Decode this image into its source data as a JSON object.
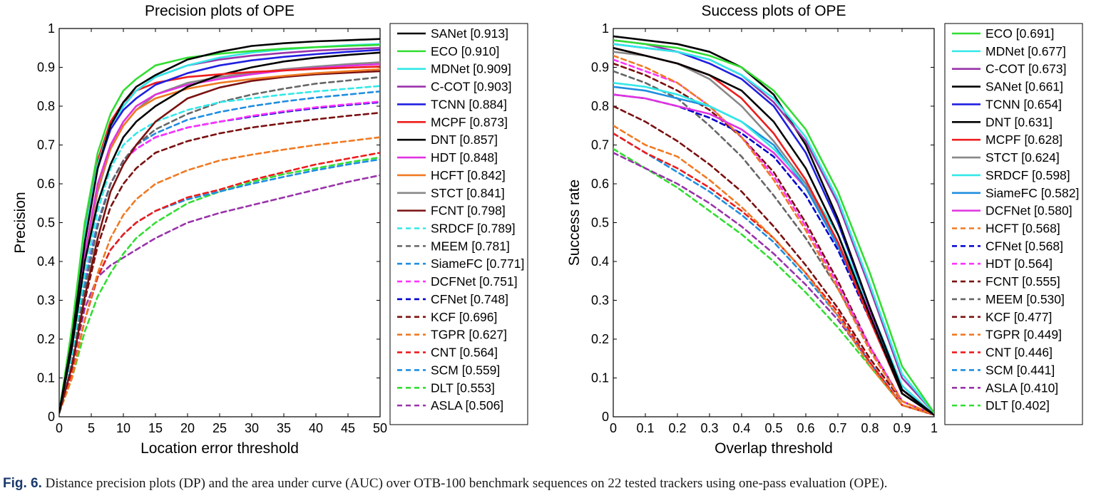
{
  "caption": {
    "label": "Fig. 6.",
    "text": "Distance precision plots (DP) and the area under curve (AUC) over OTB-100 benchmark sequences on 22 tested trackers using one-pass evaluation (OPE)."
  },
  "chart_data": [
    {
      "type": "line",
      "title": "Precision plots of OPE",
      "xlabel": "Location error threshold",
      "ylabel": "Precision",
      "xlim": [
        0,
        50
      ],
      "ylim": [
        0,
        1
      ],
      "xticks": [
        "0",
        "5",
        "10",
        "15",
        "20",
        "25",
        "30",
        "35",
        "40",
        "45",
        "50"
      ],
      "yticks": [
        "0",
        "0.1",
        "0.2",
        "0.3",
        "0.4",
        "0.5",
        "0.6",
        "0.7",
        "0.8",
        "0.9",
        "1"
      ],
      "legend": "right",
      "x": [
        0,
        2,
        4,
        6,
        8,
        10,
        12,
        15,
        20,
        25,
        30,
        35,
        40,
        45,
        50
      ],
      "series": [
        {
          "name": "SANet [0.913]",
          "color": "#000000",
          "dash": "solid",
          "values": [
            0.01,
            0.2,
            0.45,
            0.64,
            0.75,
            0.81,
            0.85,
            0.88,
            0.92,
            0.94,
            0.955,
            0.962,
            0.967,
            0.97,
            0.973
          ]
        },
        {
          "name": "ECO [0.910]",
          "color": "#33dd33",
          "dash": "solid",
          "values": [
            0.01,
            0.23,
            0.5,
            0.68,
            0.78,
            0.84,
            0.87,
            0.905,
            0.925,
            0.935,
            0.942,
            0.948,
            0.952,
            0.955,
            0.958
          ]
        },
        {
          "name": "MDNet [0.909]",
          "color": "#33e8e8",
          "dash": "solid",
          "values": [
            0.01,
            0.21,
            0.47,
            0.65,
            0.75,
            0.8,
            0.84,
            0.875,
            0.905,
            0.925,
            0.938,
            0.946,
            0.952,
            0.957,
            0.96
          ]
        },
        {
          "name": "C-COT [0.903]",
          "color": "#9933aa",
          "dash": "solid",
          "values": [
            0.01,
            0.22,
            0.48,
            0.65,
            0.75,
            0.8,
            0.84,
            0.875,
            0.905,
            0.92,
            0.93,
            0.937,
            0.943,
            0.947,
            0.95
          ]
        },
        {
          "name": "TCNN [0.884]",
          "color": "#1f1fe0",
          "dash": "solid",
          "values": [
            0.01,
            0.22,
            0.48,
            0.64,
            0.74,
            0.79,
            0.82,
            0.855,
            0.885,
            0.905,
            0.918,
            0.927,
            0.934,
            0.94,
            0.945
          ]
        },
        {
          "name": "MCPF [0.873]",
          "color": "#ee1c1c",
          "dash": "solid",
          "values": [
            0.01,
            0.22,
            0.5,
            0.66,
            0.76,
            0.81,
            0.84,
            0.86,
            0.875,
            0.882,
            0.888,
            0.892,
            0.896,
            0.899,
            0.902
          ]
        },
        {
          "name": "DNT [0.857]",
          "color": "#000000",
          "dash": "solid",
          "values": [
            0.01,
            0.18,
            0.4,
            0.55,
            0.65,
            0.72,
            0.76,
            0.8,
            0.85,
            0.88,
            0.9,
            0.915,
            0.925,
            0.932,
            0.938
          ]
        },
        {
          "name": "HDT [0.848]",
          "color": "#e033e0",
          "dash": "solid",
          "values": [
            0.01,
            0.18,
            0.42,
            0.6,
            0.7,
            0.76,
            0.8,
            0.83,
            0.855,
            0.87,
            0.882,
            0.892,
            0.898,
            0.904,
            0.908
          ]
        },
        {
          "name": "HCFT [0.842]",
          "color": "#f07a22",
          "dash": "solid",
          "values": [
            0.01,
            0.18,
            0.42,
            0.59,
            0.69,
            0.75,
            0.79,
            0.82,
            0.845,
            0.86,
            0.87,
            0.878,
            0.885,
            0.89,
            0.895
          ]
        },
        {
          "name": "STCT [0.841]",
          "color": "#888888",
          "dash": "solid",
          "values": [
            0.01,
            0.18,
            0.41,
            0.58,
            0.69,
            0.75,
            0.79,
            0.83,
            0.86,
            0.875,
            0.885,
            0.895,
            0.902,
            0.908,
            0.913
          ]
        },
        {
          "name": "FCNT [0.798]",
          "color": "#7a1010",
          "dash": "solid",
          "values": [
            0.01,
            0.13,
            0.31,
            0.46,
            0.58,
            0.65,
            0.7,
            0.76,
            0.82,
            0.848,
            0.865,
            0.875,
            0.882,
            0.886,
            0.89
          ]
        },
        {
          "name": "SRDCF [0.789]",
          "color": "#33e8e8",
          "dash": "dashed",
          "values": [
            0.01,
            0.16,
            0.37,
            0.53,
            0.64,
            0.7,
            0.73,
            0.76,
            0.79,
            0.81,
            0.82,
            0.83,
            0.838,
            0.845,
            0.852
          ]
        },
        {
          "name": "MEEM [0.781]",
          "color": "#666666",
          "dash": "dashed",
          "values": [
            0.01,
            0.14,
            0.33,
            0.49,
            0.6,
            0.66,
            0.7,
            0.74,
            0.78,
            0.81,
            0.83,
            0.845,
            0.858,
            0.866,
            0.875
          ]
        },
        {
          "name": "SiameFC [0.771]",
          "color": "#1f8ee0",
          "dash": "dashed",
          "values": [
            0.01,
            0.15,
            0.34,
            0.5,
            0.6,
            0.66,
            0.7,
            0.73,
            0.765,
            0.785,
            0.8,
            0.812,
            0.822,
            0.83,
            0.838
          ]
        },
        {
          "name": "DCFNet [0.751]",
          "color": "#ff33ff",
          "dash": "dashed",
          "values": [
            0.01,
            0.15,
            0.35,
            0.5,
            0.6,
            0.66,
            0.69,
            0.72,
            0.745,
            0.76,
            0.775,
            0.787,
            0.797,
            0.805,
            0.812
          ]
        },
        {
          "name": "CFNet [0.748]",
          "color": "#0000cc",
          "dash": "dashed",
          "values": [
            0.01,
            0.15,
            0.35,
            0.5,
            0.6,
            0.66,
            0.69,
            0.72,
            0.745,
            0.76,
            0.773,
            0.785,
            0.795,
            0.803,
            0.81
          ]
        },
        {
          "name": "KCF [0.696]",
          "color": "#7a1010",
          "dash": "dashed",
          "values": [
            0.01,
            0.13,
            0.3,
            0.44,
            0.54,
            0.6,
            0.64,
            0.68,
            0.71,
            0.73,
            0.745,
            0.756,
            0.766,
            0.775,
            0.783
          ]
        },
        {
          "name": "TGPR [0.627]",
          "color": "#f07a22",
          "dash": "dashed",
          "values": [
            0.01,
            0.1,
            0.25,
            0.37,
            0.46,
            0.52,
            0.56,
            0.6,
            0.635,
            0.66,
            0.675,
            0.688,
            0.7,
            0.71,
            0.72
          ]
        },
        {
          "name": "CNT [0.564]",
          "color": "#ee1c1c",
          "dash": "dashed",
          "values": [
            0.01,
            0.11,
            0.25,
            0.36,
            0.43,
            0.47,
            0.5,
            0.53,
            0.565,
            0.585,
            0.61,
            0.63,
            0.65,
            0.665,
            0.68
          ]
        },
        {
          "name": "SCM [0.559]",
          "color": "#1f8ee0",
          "dash": "dashed",
          "values": [
            0.01,
            0.11,
            0.25,
            0.36,
            0.43,
            0.47,
            0.5,
            0.53,
            0.56,
            0.58,
            0.6,
            0.618,
            0.635,
            0.65,
            0.663
          ]
        },
        {
          "name": "DLT [0.553]",
          "color": "#33dd33",
          "dash": "dashed",
          "values": [
            0.01,
            0.1,
            0.22,
            0.31,
            0.37,
            0.42,
            0.46,
            0.5,
            0.55,
            0.58,
            0.605,
            0.625,
            0.64,
            0.655,
            0.668
          ]
        },
        {
          "name": "ASLA [0.506]",
          "color": "#9933aa",
          "dash": "dashed",
          "values": [
            0.01,
            0.13,
            0.28,
            0.36,
            0.39,
            0.41,
            0.43,
            0.46,
            0.5,
            0.525,
            0.545,
            0.565,
            0.585,
            0.605,
            0.622
          ]
        }
      ]
    },
    {
      "type": "line",
      "title": "Success plots of OPE",
      "xlabel": "Overlap threshold",
      "ylabel": "Success rate",
      "xlim": [
        0,
        1
      ],
      "ylim": [
        0,
        1
      ],
      "xticks": [
        "0",
        "0.1",
        "0.2",
        "0.3",
        "0.4",
        "0.5",
        "0.6",
        "0.7",
        "0.8",
        "0.9",
        "1"
      ],
      "yticks": [
        "0",
        "0.1",
        "0.2",
        "0.3",
        "0.4",
        "0.5",
        "0.6",
        "0.7",
        "0.8",
        "0.9",
        "1"
      ],
      "legend": "right",
      "x": [
        0,
        0.1,
        0.2,
        0.3,
        0.4,
        0.5,
        0.6,
        0.7,
        0.8,
        0.9,
        1
      ],
      "series": [
        {
          "name": "ECO [0.691]",
          "color": "#33dd33",
          "dash": "solid",
          "values": [
            0.97,
            0.96,
            0.95,
            0.93,
            0.9,
            0.84,
            0.74,
            0.58,
            0.37,
            0.13,
            0.01
          ]
        },
        {
          "name": "MDNet [0.677]",
          "color": "#33e8e8",
          "dash": "solid",
          "values": [
            0.96,
            0.95,
            0.94,
            0.92,
            0.88,
            0.82,
            0.72,
            0.56,
            0.34,
            0.11,
            0.01
          ]
        },
        {
          "name": "C-COT [0.673]",
          "color": "#9933aa",
          "dash": "solid",
          "values": [
            0.97,
            0.96,
            0.94,
            0.92,
            0.88,
            0.81,
            0.71,
            0.55,
            0.33,
            0.1,
            0.01
          ]
        },
        {
          "name": "SANet [0.661]",
          "color": "#000000",
          "dash": "solid",
          "values": [
            0.98,
            0.97,
            0.96,
            0.94,
            0.9,
            0.83,
            0.7,
            0.51,
            0.28,
            0.07,
            0.005
          ]
        },
        {
          "name": "TCNN [0.654]",
          "color": "#1f1fe0",
          "dash": "solid",
          "values": [
            0.96,
            0.95,
            0.94,
            0.91,
            0.87,
            0.8,
            0.68,
            0.5,
            0.28,
            0.07,
            0.005
          ]
        },
        {
          "name": "DNT [0.631]",
          "color": "#000000",
          "dash": "solid",
          "values": [
            0.95,
            0.93,
            0.91,
            0.88,
            0.84,
            0.76,
            0.64,
            0.47,
            0.26,
            0.06,
            0.005
          ]
        },
        {
          "name": "MCPF [0.628]",
          "color": "#ee1c1c",
          "dash": "solid",
          "values": [
            0.95,
            0.93,
            0.91,
            0.88,
            0.82,
            0.73,
            0.61,
            0.45,
            0.25,
            0.06,
            0.005
          ]
        },
        {
          "name": "STCT [0.624]",
          "color": "#888888",
          "dash": "solid",
          "values": [
            0.94,
            0.93,
            0.91,
            0.87,
            0.8,
            0.71,
            0.6,
            0.45,
            0.26,
            0.06,
            0.005
          ]
        },
        {
          "name": "SRDCF [0.598]",
          "color": "#33e8e8",
          "dash": "solid",
          "values": [
            0.86,
            0.85,
            0.83,
            0.8,
            0.76,
            0.69,
            0.6,
            0.47,
            0.28,
            0.08,
            0.005
          ]
        },
        {
          "name": "SiameFC [0.582]",
          "color": "#1f8ee0",
          "dash": "solid",
          "values": [
            0.85,
            0.84,
            0.82,
            0.8,
            0.76,
            0.7,
            0.59,
            0.44,
            0.26,
            0.07,
            0.005
          ]
        },
        {
          "name": "DCFNet [0.580]",
          "color": "#e033e0",
          "dash": "solid",
          "values": [
            0.83,
            0.82,
            0.8,
            0.78,
            0.74,
            0.68,
            0.59,
            0.45,
            0.27,
            0.08,
            0.005
          ]
        },
        {
          "name": "HCFT [0.568]",
          "color": "#f07a22",
          "dash": "dashed",
          "values": [
            0.93,
            0.9,
            0.86,
            0.8,
            0.72,
            0.61,
            0.48,
            0.33,
            0.17,
            0.04,
            0.005
          ]
        },
        {
          "name": "CFNet [0.568]",
          "color": "#0000cc",
          "dash": "dashed",
          "values": [
            0.83,
            0.82,
            0.8,
            0.77,
            0.73,
            0.67,
            0.57,
            0.43,
            0.25,
            0.06,
            0.005
          ]
        },
        {
          "name": "HDT [0.564]",
          "color": "#ff33ff",
          "dash": "dashed",
          "values": [
            0.92,
            0.89,
            0.86,
            0.8,
            0.72,
            0.62,
            0.49,
            0.34,
            0.18,
            0.04,
            0.005
          ]
        },
        {
          "name": "FCNT [0.555]",
          "color": "#7a1010",
          "dash": "dashed",
          "values": [
            0.91,
            0.88,
            0.84,
            0.79,
            0.72,
            0.63,
            0.5,
            0.35,
            0.18,
            0.04,
            0.005
          ]
        },
        {
          "name": "MEEM [0.530]",
          "color": "#666666",
          "dash": "dashed",
          "values": [
            0.89,
            0.86,
            0.82,
            0.75,
            0.67,
            0.57,
            0.46,
            0.33,
            0.18,
            0.04,
            0.005
          ]
        },
        {
          "name": "KCF [0.477]",
          "color": "#7a1010",
          "dash": "dashed",
          "values": [
            0.8,
            0.76,
            0.71,
            0.65,
            0.58,
            0.49,
            0.39,
            0.28,
            0.15,
            0.04,
            0.005
          ]
        },
        {
          "name": "TGPR [0.449]",
          "color": "#f07a22",
          "dash": "dashed",
          "values": [
            0.75,
            0.7,
            0.67,
            0.61,
            0.54,
            0.46,
            0.37,
            0.26,
            0.13,
            0.03,
            0.005
          ]
        },
        {
          "name": "CNT [0.446]",
          "color": "#ee1c1c",
          "dash": "dashed",
          "values": [
            0.73,
            0.68,
            0.64,
            0.59,
            0.53,
            0.46,
            0.37,
            0.27,
            0.14,
            0.03,
            0.005
          ]
        },
        {
          "name": "SCM [0.441]",
          "color": "#1f8ee0",
          "dash": "dashed",
          "values": [
            0.73,
            0.68,
            0.63,
            0.58,
            0.52,
            0.45,
            0.36,
            0.26,
            0.14,
            0.03,
            0.005
          ]
        },
        {
          "name": "ASLA [0.410]",
          "color": "#9933aa",
          "dash": "dashed",
          "values": [
            0.68,
            0.64,
            0.6,
            0.55,
            0.49,
            0.42,
            0.34,
            0.25,
            0.14,
            0.03,
            0.005
          ]
        },
        {
          "name": "DLT [0.402]",
          "color": "#33dd33",
          "dash": "dashed",
          "values": [
            0.69,
            0.64,
            0.59,
            0.53,
            0.47,
            0.4,
            0.32,
            0.23,
            0.13,
            0.03,
            0.005
          ]
        }
      ]
    }
  ]
}
